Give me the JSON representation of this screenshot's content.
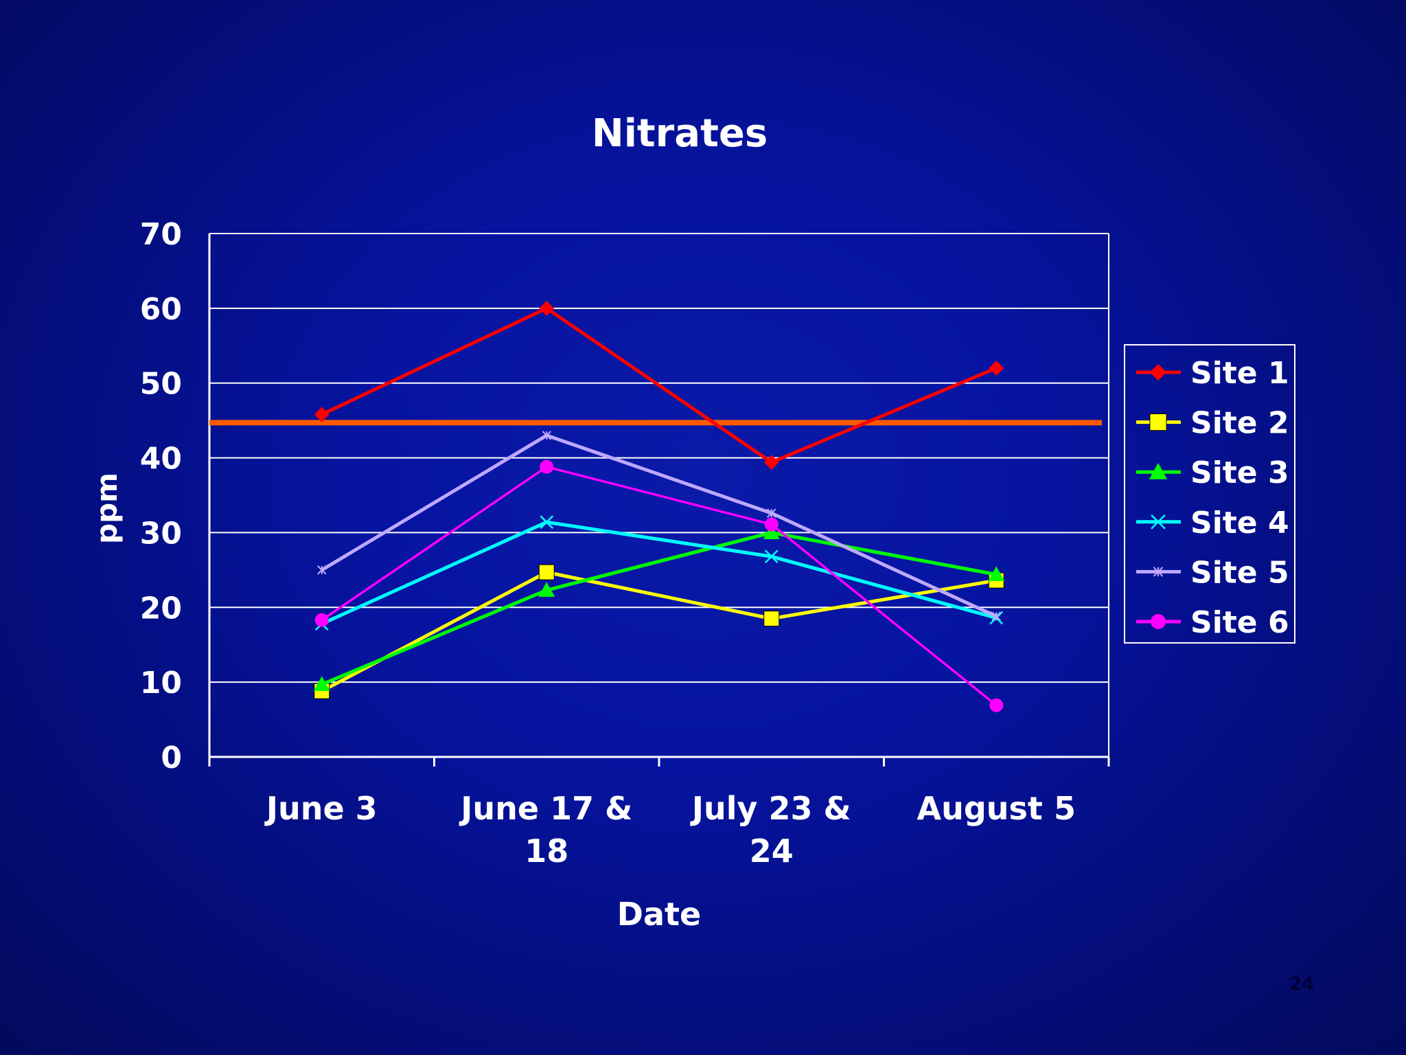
{
  "page_number": "24",
  "chart_data": {
    "type": "line",
    "title": "Nitrates",
    "xlabel": "Date",
    "ylabel": "ppm",
    "ylim": [
      0,
      70
    ],
    "yticks": [
      "0",
      "10",
      "20",
      "30",
      "40",
      "50",
      "60",
      "70"
    ],
    "grid": true,
    "legend_position": "right",
    "categories": [
      [
        "June 3"
      ],
      [
        "June 17 &",
        "18"
      ],
      [
        "July 23 &",
        "24"
      ],
      [
        "August 5"
      ]
    ],
    "reference_line": {
      "value": 44.7,
      "color": "#ff5a00"
    },
    "series": [
      {
        "name": "Site 1",
        "values": [
          45.8,
          60,
          39.4,
          52
        ],
        "color": "#ff0000",
        "marker": "diamond"
      },
      {
        "name": "Site 2",
        "values": [
          8.8,
          24.7,
          18.5,
          23.6
        ],
        "color": "#ffff00",
        "marker": "square"
      },
      {
        "name": "Site 3",
        "values": [
          9.7,
          22.3,
          30,
          24.4
        ],
        "color": "#00ff00",
        "marker": "triangle"
      },
      {
        "name": "Site 4",
        "values": [
          17.8,
          31.4,
          26.8,
          18.6
        ],
        "color": "#00ffff",
        "marker": "x"
      },
      {
        "name": "Site 5",
        "values": [
          25,
          43,
          32.6,
          18.8
        ],
        "color": "#bfa8ff",
        "marker": "star"
      },
      {
        "name": "Site 6",
        "values": [
          18.3,
          38.8,
          31.1,
          6.9
        ],
        "color": "#ff00ff",
        "marker": "circle"
      }
    ]
  }
}
